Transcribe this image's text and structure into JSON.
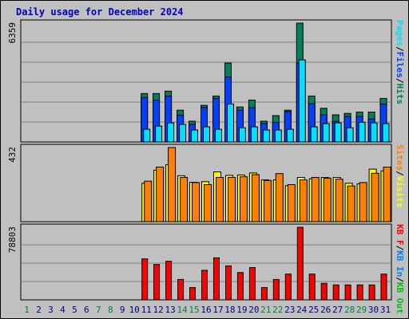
{
  "title": "Daily usage for December 2024",
  "colors": {
    "background": "#c0c0c0",
    "hits": "#00805c",
    "files": "#0040ff",
    "pages": "#00e0ff",
    "visits": "#ffff00",
    "sites": "#ff8000",
    "kb_f": "#ff0000",
    "kb_in": "#0080ff",
    "kb_out": "#00c000",
    "title_text": "#0000c0"
  },
  "x_ticks": [
    {
      "label": "1",
      "weekend": true
    },
    {
      "label": "2",
      "weekend": false
    },
    {
      "label": "3",
      "weekend": false
    },
    {
      "label": "4",
      "weekend": false
    },
    {
      "label": "5",
      "weekend": false
    },
    {
      "label": "6",
      "weekend": false
    },
    {
      "label": "7",
      "weekend": true
    },
    {
      "label": "8",
      "weekend": true
    },
    {
      "label": "9",
      "weekend": false
    },
    {
      "label": "10",
      "weekend": false
    },
    {
      "label": "11",
      "weekend": false
    },
    {
      "label": "12",
      "weekend": false
    },
    {
      "label": "13",
      "weekend": false
    },
    {
      "label": "14",
      "weekend": true
    },
    {
      "label": "15",
      "weekend": true
    },
    {
      "label": "16",
      "weekend": false
    },
    {
      "label": "17",
      "weekend": false
    },
    {
      "label": "18",
      "weekend": false
    },
    {
      "label": "19",
      "weekend": false
    },
    {
      "label": "20",
      "weekend": false
    },
    {
      "label": "21",
      "weekend": true
    },
    {
      "label": "22",
      "weekend": true
    },
    {
      "label": "23",
      "weekend": false
    },
    {
      "label": "24",
      "weekend": false
    },
    {
      "label": "25",
      "weekend": false
    },
    {
      "label": "26",
      "weekend": false
    },
    {
      "label": "27",
      "weekend": false
    },
    {
      "label": "28",
      "weekend": true
    },
    {
      "label": "29",
      "weekend": true
    },
    {
      "label": "30",
      "weekend": false
    },
    {
      "label": "31",
      "weekend": false
    }
  ],
  "chart_data": [
    {
      "type": "bar",
      "panel": "hits",
      "max_label": "6359",
      "ylim": [
        0,
        6359
      ],
      "grid": true,
      "legend": [
        {
          "text": "Pages",
          "color": "#00e0ff"
        },
        {
          "text": "/",
          "color": "#000000"
        },
        {
          "text": "Files",
          "color": "#0040ff"
        },
        {
          "text": "/",
          "color": "#000000"
        },
        {
          "text": "Hits",
          "color": "#00805c"
        }
      ],
      "x": [
        1,
        2,
        3,
        4,
        5,
        6,
        7,
        8,
        9,
        10,
        11,
        12,
        13,
        14,
        15,
        16,
        17,
        18,
        19,
        20,
        21,
        22,
        23,
        24,
        25,
        26,
        27,
        28,
        29,
        30,
        31
      ],
      "series": [
        {
          "name": "Hits",
          "key": "hits",
          "values": [
            0,
            0,
            0,
            0,
            0,
            0,
            0,
            0,
            0,
            0,
            2590,
            2590,
            2720,
            1700,
            1110,
            1960,
            2460,
            4220,
            1870,
            2240,
            1110,
            1410,
            1700,
            6359,
            2460,
            1800,
            1450,
            1530,
            1600,
            1600,
            2330
          ]
        },
        {
          "name": "Files",
          "key": "files",
          "values": [
            0,
            0,
            0,
            0,
            0,
            0,
            0,
            0,
            0,
            0,
            2380,
            2240,
            2460,
            1440,
            940,
            1840,
            2330,
            3480,
            1700,
            1830,
            980,
            1050,
            1620,
            4220,
            2050,
            1450,
            1100,
            1360,
            1360,
            1230,
            2030
          ]
        },
        {
          "name": "Pages",
          "key": "pages",
          "values": [
            0,
            0,
            0,
            0,
            0,
            0,
            0,
            0,
            0,
            0,
            680,
            850,
            1020,
            940,
            640,
            810,
            680,
            2030,
            760,
            810,
            640,
            640,
            680,
            4390,
            810,
            980,
            1020,
            760,
            1050,
            1020,
            980
          ]
        }
      ]
    },
    {
      "type": "bar",
      "panel": "visits",
      "max_label": "432",
      "ylim": [
        0,
        432
      ],
      "grid": false,
      "legend": [
        {
          "text": "Sites",
          "color": "#ff8000"
        },
        {
          "text": "/",
          "color": "#000000"
        },
        {
          "text": "Visits",
          "color": "#ffff00"
        }
      ],
      "x": [
        1,
        2,
        3,
        4,
        5,
        6,
        7,
        8,
        9,
        10,
        11,
        12,
        13,
        14,
        15,
        16,
        17,
        18,
        19,
        20,
        21,
        22,
        23,
        24,
        25,
        26,
        27,
        28,
        29,
        30,
        31
      ],
      "series": [
        {
          "name": "Visits",
          "key": "visits",
          "values": [
            0,
            0,
            0,
            0,
            0,
            0,
            0,
            0,
            0,
            0,
            224,
            300,
            332,
            268,
            230,
            233,
            290,
            270,
            272,
            284,
            244,
            244,
            210,
            258,
            250,
            258,
            258,
            224,
            220,
            306,
            296
          ]
        },
        {
          "name": "Sites",
          "key": "sites",
          "values": [
            0,
            0,
            0,
            0,
            0,
            0,
            0,
            0,
            0,
            0,
            236,
            318,
            432,
            258,
            228,
            216,
            258,
            258,
            262,
            274,
            240,
            280,
            216,
            244,
            258,
            254,
            248,
            208,
            228,
            282,
            318
          ]
        }
      ]
    },
    {
      "type": "bar",
      "panel": "kbytes",
      "max_label": "78803",
      "ylim": [
        0,
        78803
      ],
      "grid": true,
      "legend": [
        {
          "text": "KB F",
          "color": "#ff0000"
        },
        {
          "text": "/",
          "color": "#000000"
        },
        {
          "text": "KB In",
          "color": "#0080ff"
        },
        {
          "text": "/",
          "color": "#000000"
        },
        {
          "text": "KB Out",
          "color": "#00c000"
        }
      ],
      "x": [
        1,
        2,
        3,
        4,
        5,
        6,
        7,
        8,
        9,
        10,
        11,
        12,
        13,
        14,
        15,
        16,
        17,
        18,
        19,
        20,
        21,
        22,
        23,
        24,
        25,
        26,
        27,
        28,
        29,
        30,
        31
      ],
      "series": [
        {
          "name": "KB F",
          "key": "kb_f",
          "values": [
            0,
            0,
            0,
            0,
            0,
            0,
            0,
            0,
            0,
            0,
            44600,
            38400,
            41900,
            22200,
            13300,
            32000,
            45600,
            36900,
            29600,
            35100,
            13300,
            22200,
            28000,
            78803,
            28000,
            17900,
            16200,
            16200,
            16200,
            16200,
            28000
          ]
        }
      ]
    }
  ]
}
